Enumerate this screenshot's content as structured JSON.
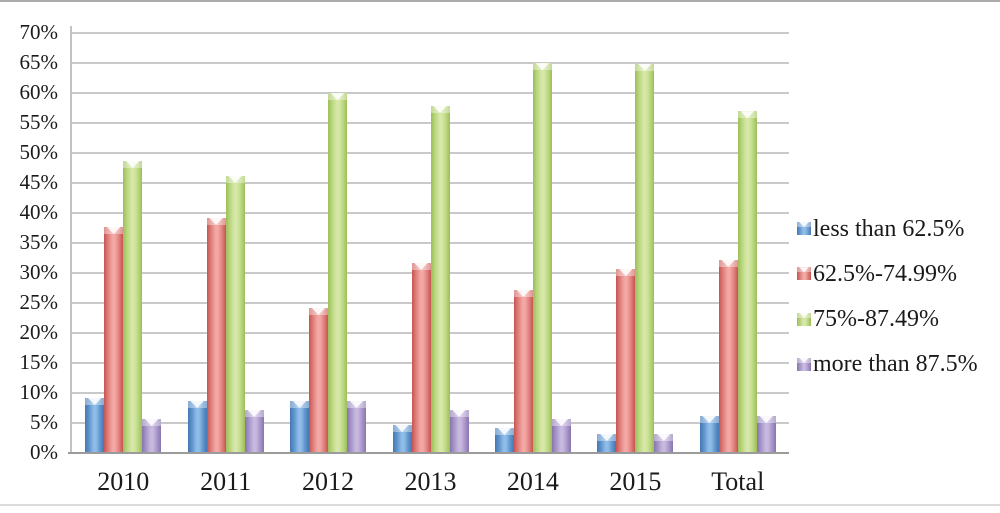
{
  "chart_data": {
    "type": "bar",
    "title": "",
    "xlabel": "",
    "ylabel": "",
    "categories": [
      "2010",
      "2011",
      "2012",
      "2013",
      "2014",
      "2015",
      "Total"
    ],
    "series": [
      {
        "name": "less than 62.5%",
        "values": [
          9,
          8.5,
          8.5,
          4.5,
          4,
          3,
          6
        ],
        "color_edge": "#4677b4",
        "color_mid": "#5e95cc",
        "color_light": "#8fbce8"
      },
      {
        "name": "62.5%-74.99%",
        "values": [
          37.5,
          39,
          24,
          31.5,
          27,
          30.5,
          32
        ],
        "color_edge": "#c65451",
        "color_mid": "#e07f7c",
        "color_light": "#f2a8a5"
      },
      {
        "name": "75%-87.49%",
        "values": [
          48.5,
          46,
          59.8,
          57.7,
          64.8,
          64.7,
          56.8
        ],
        "color_edge": "#9cbe59",
        "color_mid": "#bad77f",
        "color_light": "#d6e7a8"
      },
      {
        "name": "more than 87.5%",
        "values": [
          5.5,
          7,
          8.5,
          7,
          5.5,
          3,
          6
        ],
        "color_edge": "#8875ae",
        "color_mid": "#a795c8",
        "color_light": "#c6b8de"
      }
    ],
    "ylim": [
      0,
      70
    ],
    "ytick_step": 5,
    "ytick_suffix": "%",
    "grid": true,
    "legend_position": "right",
    "gridline_color": "#c9c9c9",
    "axis_color": "#9b9b9b"
  }
}
